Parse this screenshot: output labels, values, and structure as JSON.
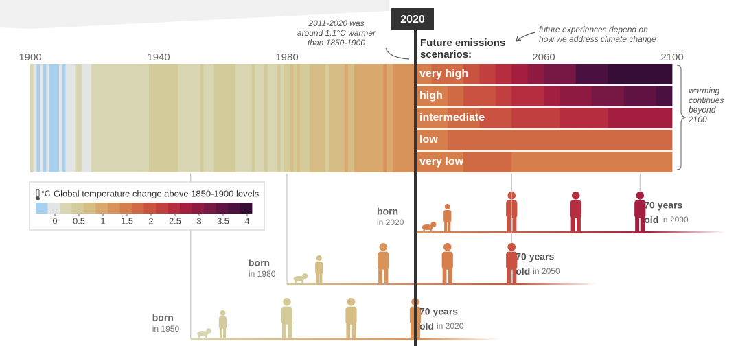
{
  "timeline": {
    "xlim": [
      1900,
      2100
    ],
    "xticks": [
      1900,
      1940,
      1980,
      2060,
      2100
    ],
    "now": 2020
  },
  "annotations": {
    "observed": [
      "2011-2020 was",
      "around 1.1°C warmer",
      "than 1850-1900"
    ],
    "scenarios_heading": [
      "Future emissions",
      "scenarios:"
    ],
    "future_note": [
      "future experiences depend on",
      "how we address climate change"
    ],
    "beyond": [
      "warming",
      "continues",
      "beyond",
      "2100"
    ]
  },
  "observed": {
    "start": 1900,
    "values": [
      0.1,
      -0.1,
      -0.2,
      -0.1,
      -0.2,
      -0.1,
      -0.2,
      -0.2,
      -0.2,
      -0.1,
      -0.2,
      -0.1,
      0.0,
      0.0,
      0.2,
      0.2,
      0.0,
      -0.1,
      0.0,
      0.1,
      0.1,
      0.2,
      0.1,
      0.2,
      0.1,
      0.2,
      0.3,
      0.2,
      0.3,
      0.1,
      0.3,
      0.3,
      0.3,
      0.2,
      0.3,
      0.3,
      0.3,
      0.4,
      0.5,
      0.4,
      0.5,
      0.5,
      0.4,
      0.4,
      0.5,
      0.4,
      0.3,
      0.3,
      0.3,
      0.3,
      0.2,
      0.3,
      0.3,
      0.4,
      0.2,
      0.2,
      0.2,
      0.4,
      0.4,
      0.4,
      0.4,
      0.4,
      0.4,
      0.4,
      0.2,
      0.2,
      0.3,
      0.3,
      0.3,
      0.4,
      0.3,
      0.3,
      0.3,
      0.4,
      0.2,
      0.2,
      0.2,
      0.4,
      0.3,
      0.5,
      0.5,
      0.6,
      0.4,
      0.6,
      0.4,
      0.4,
      0.5,
      0.6,
      0.7,
      0.6,
      0.7,
      0.7,
      0.5,
      0.6,
      0.6,
      0.8,
      0.7,
      0.8,
      1.0,
      0.8,
      0.8,
      0.9,
      1.0,
      1.0,
      0.9,
      1.0,
      1.0,
      1.0,
      0.9,
      1.0,
      1.1,
      1.0,
      1.0,
      1.1,
      1.1,
      1.2,
      1.3,
      1.2,
      1.2,
      1.3,
      1.3
    ]
  },
  "scenarios": [
    {
      "name": "very high",
      "start": 2020,
      "step": 5,
      "values": [
        1.4,
        1.6,
        1.8,
        2.0,
        2.2,
        2.4,
        2.7,
        2.9,
        3.1,
        3.3,
        3.6,
        3.8,
        4.0,
        4.2,
        4.4,
        4.6
      ]
    },
    {
      "name": "high",
      "start": 2020,
      "step": 5,
      "values": [
        1.4,
        1.5,
        1.7,
        1.9,
        2.0,
        2.2,
        2.4,
        2.5,
        2.7,
        2.9,
        3.0,
        3.2,
        3.3,
        3.4,
        3.5,
        3.6
      ]
    },
    {
      "name": "intermediate",
      "start": 2020,
      "step": 5,
      "values": [
        1.4,
        1.5,
        1.6,
        1.8,
        1.9,
        2.0,
        2.1,
        2.2,
        2.3,
        2.4,
        2.5,
        2.5,
        2.6,
        2.6,
        2.7,
        2.7
      ]
    },
    {
      "name": "low",
      "start": 2020,
      "step": 5,
      "values": [
        1.4,
        1.5,
        1.6,
        1.7,
        1.7,
        1.8,
        1.8,
        1.8,
        1.8,
        1.8,
        1.8,
        1.8,
        1.8,
        1.8,
        1.8,
        1.8
      ]
    },
    {
      "name": "very low",
      "start": 2020,
      "step": 5,
      "values": [
        1.4,
        1.5,
        1.5,
        1.6,
        1.6,
        1.6,
        1.5,
        1.5,
        1.5,
        1.5,
        1.5,
        1.4,
        1.4,
        1.4,
        1.4,
        1.4
      ]
    }
  ],
  "legend": {
    "unit": "°C",
    "title": "Global temperature change above 1850-1900 levels",
    "lim": [
      -0.4,
      4.1
    ],
    "ticks": [
      0,
      0.5,
      1,
      1.5,
      2,
      2.5,
      3,
      3.5,
      4
    ],
    "colors": [
      "#a7cfee",
      "#e3e5e5",
      "#d9d6b3",
      "#d4cb9a",
      "#d6bd86",
      "#d9a86d",
      "#d8935a",
      "#d67f4c",
      "#d06a44",
      "#c95340",
      "#c23f3f",
      "#b52d3e",
      "#a41f3f",
      "#8e1a41",
      "#771743",
      "#601343",
      "#4a103f",
      "#360d36"
    ]
  },
  "generations": [
    {
      "born": "born",
      "born_label": "in 2020",
      "birth_year": 2020,
      "age_label": "70 years",
      "old": "old",
      "end_label": "in 2090",
      "end_year": 2090
    },
    {
      "born": "born",
      "born_label": "in 1980",
      "birth_year": 1980,
      "age_label": "70 years",
      "old": "old",
      "end_label": "in 2050",
      "end_year": 2050
    },
    {
      "born": "born",
      "born_label": "in 1950",
      "birth_year": 1950,
      "age_label": "70 years",
      "old": "old",
      "end_label": "in 2020",
      "end_year": 2020
    }
  ]
}
